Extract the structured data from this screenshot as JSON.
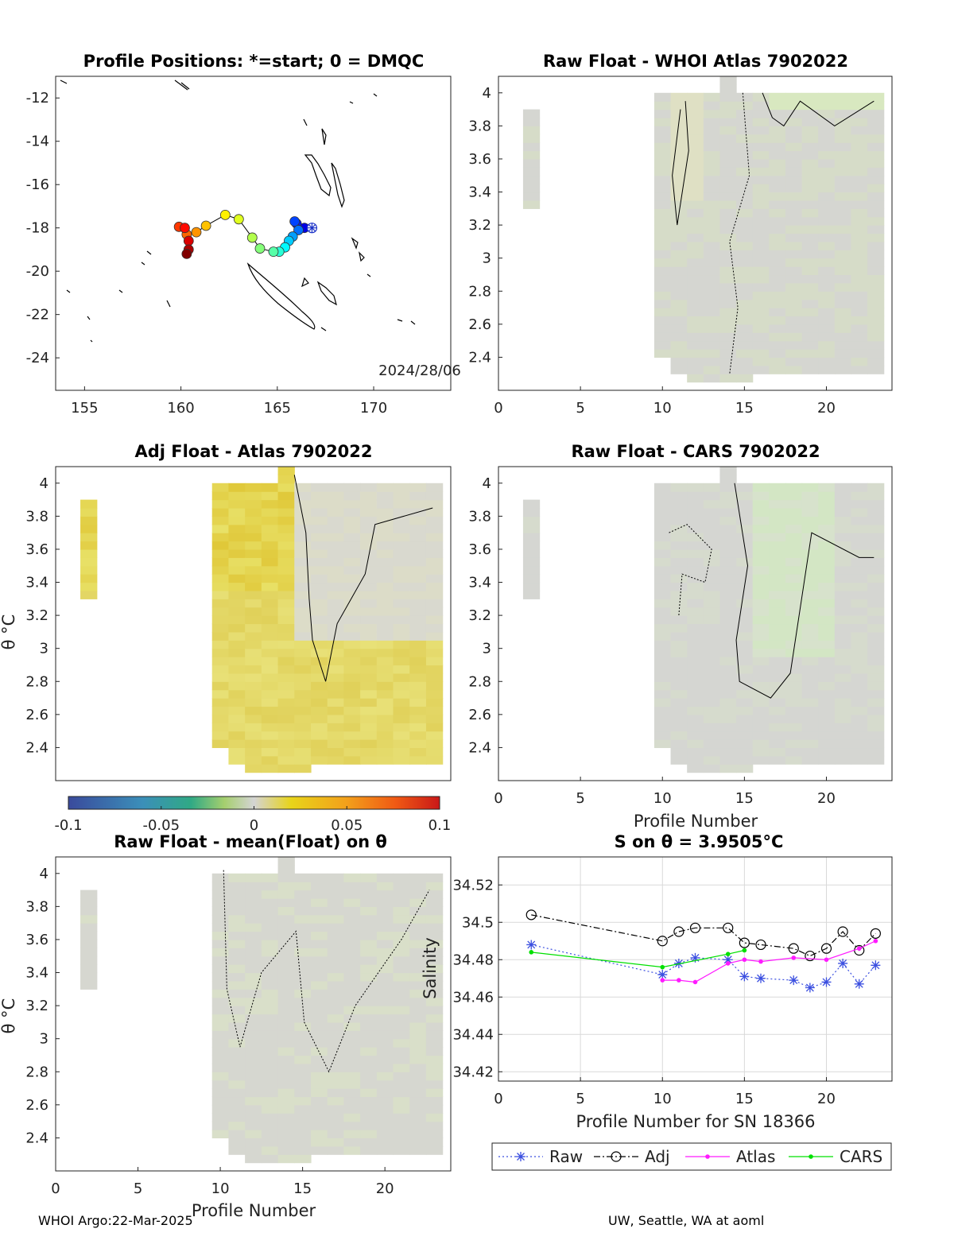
{
  "footer": {
    "left": "WHOI Argo:22-Mar-2025",
    "right": "UW, Seattle, WA at aoml"
  },
  "colors": {
    "raw": "#3b4fe0",
    "adj": "#000000",
    "atlas": "#ff1aff",
    "cars": "#00e000",
    "anomaly_neutral": "#d4d4d4",
    "anomaly_positive": "#e6d800",
    "anomaly_negative": "#d2e9b9"
  },
  "chart_data": [
    {
      "id": "map",
      "type": "scatter",
      "title": "Profile Positions: *=start; 0 = DMQC",
      "xlim": [
        153.5,
        174.0
      ],
      "ylim": [
        -25.5,
        -11.0
      ],
      "xticks": [
        "155",
        "160",
        "165",
        "170"
      ],
      "yticks": [
        "-12",
        "-14",
        "-16",
        "-18",
        "-20",
        "-22",
        "-24"
      ],
      "annotation": "2024/28/06",
      "start_marker": [
        166.8,
        -18.0
      ],
      "track": [
        [
          166.4,
          -18.0
        ],
        [
          166.0,
          -17.8
        ],
        [
          165.9,
          -17.7
        ],
        [
          166.1,
          -18.1
        ],
        [
          165.8,
          -18.4
        ],
        [
          165.6,
          -18.6
        ],
        [
          165.4,
          -18.9
        ],
        [
          165.1,
          -19.1
        ],
        [
          164.8,
          -19.1
        ],
        [
          164.1,
          -18.95
        ],
        [
          163.7,
          -18.45
        ],
        [
          163.0,
          -17.6
        ],
        [
          162.3,
          -17.4
        ],
        [
          161.3,
          -17.9
        ],
        [
          160.8,
          -18.2
        ],
        [
          160.3,
          -18.3
        ],
        [
          159.9,
          -17.95
        ],
        [
          160.2,
          -18.0
        ],
        [
          160.4,
          -18.6
        ],
        [
          160.4,
          -19.0
        ],
        [
          160.3,
          -19.2
        ]
      ]
    },
    {
      "id": "raw_atlas",
      "type": "heatmap",
      "title": "Raw Float - WHOI Atlas  7902022",
      "xlabel": "",
      "ylabel": "",
      "xlim": [
        0,
        24
      ],
      "ylim": [
        2.2,
        4.1
      ],
      "xticks": [
        "0",
        "5",
        "10",
        "15",
        "20"
      ],
      "yticks": [
        "2.4",
        "2.6",
        "2.8",
        "3",
        "3.2",
        "3.4",
        "3.6",
        "3.8",
        "4"
      ]
    },
    {
      "id": "adj_atlas",
      "type": "heatmap",
      "title": "Adj Float - Atlas  7902022",
      "xlabel": "",
      "ylabel": "θ °C",
      "xlim": [
        0,
        24
      ],
      "ylim": [
        2.2,
        4.1
      ],
      "xticks": [],
      "yticks": [
        "2.4",
        "2.6",
        "2.8",
        "3",
        "3.2",
        "3.4",
        "3.6",
        "3.8",
        "4"
      ]
    },
    {
      "id": "raw_cars",
      "type": "heatmap",
      "title": "Raw Float - CARS  7902022",
      "xlabel": "Profile Number",
      "ylabel": "",
      "xlim": [
        0,
        24
      ],
      "ylim": [
        2.2,
        4.1
      ],
      "xticks": [
        "0",
        "5",
        "10",
        "15",
        "20"
      ],
      "yticks": [
        "2.4",
        "2.6",
        "2.8",
        "3",
        "3.2",
        "3.4",
        "3.6",
        "3.8",
        "4"
      ]
    },
    {
      "id": "colorbar",
      "type": "colorbar",
      "range": [
        -0.1,
        0.1
      ],
      "ticks": [
        "-0.1",
        "-0.05",
        "0",
        "0.05",
        "0.1"
      ]
    },
    {
      "id": "raw_mean",
      "type": "heatmap",
      "title": "Raw Float - mean(Float) on θ",
      "xlabel": "Profile Number",
      "ylabel": "θ °C",
      "xlim": [
        0,
        24
      ],
      "ylim": [
        2.2,
        4.1
      ],
      "xticks": [
        "0",
        "5",
        "10",
        "15",
        "20"
      ],
      "yticks": [
        "2.4",
        "2.6",
        "2.8",
        "3",
        "3.2",
        "3.4",
        "3.6",
        "3.8",
        "4"
      ]
    },
    {
      "id": "salinity",
      "type": "line",
      "title": "S on θ = 3.9505°C",
      "xlabel": "Profile Number for SN 18366",
      "ylabel": "Salinity",
      "xlim": [
        0,
        24
      ],
      "ylim": [
        34.415,
        34.535
      ],
      "grid": true,
      "legend": "below",
      "xticks": [
        "0",
        "5",
        "10",
        "15",
        "20"
      ],
      "yticks": [
        "34.42",
        "34.44",
        "34.46",
        "34.48",
        "34.5",
        "34.52"
      ],
      "series": [
        {
          "name": "Raw",
          "x": [
            2,
            10,
            11,
            12,
            14,
            15,
            16,
            18,
            19,
            20,
            21,
            22,
            23
          ],
          "y": [
            34.488,
            34.472,
            34.478,
            34.481,
            34.48,
            34.471,
            34.47,
            34.469,
            34.465,
            34.468,
            34.478,
            34.467,
            34.477
          ]
        },
        {
          "name": "Adj",
          "x": [
            2,
            10,
            11,
            12,
            14,
            15,
            16,
            18,
            19,
            20,
            21,
            22,
            23
          ],
          "y": [
            34.504,
            34.49,
            34.495,
            34.497,
            34.497,
            34.489,
            34.488,
            34.486,
            34.482,
            34.486,
            34.495,
            34.485,
            34.494
          ]
        },
        {
          "name": "Atlas",
          "x": [
            10,
            11,
            12,
            14,
            15,
            16,
            18,
            20,
            22,
            23
          ],
          "y": [
            34.469,
            34.469,
            34.468,
            34.478,
            34.48,
            34.479,
            34.481,
            34.48,
            34.486,
            34.49
          ]
        },
        {
          "name": "CARS",
          "x": [
            2,
            10,
            14,
            15
          ],
          "y": [
            34.484,
            34.476,
            34.483,
            34.485
          ]
        }
      ]
    }
  ]
}
